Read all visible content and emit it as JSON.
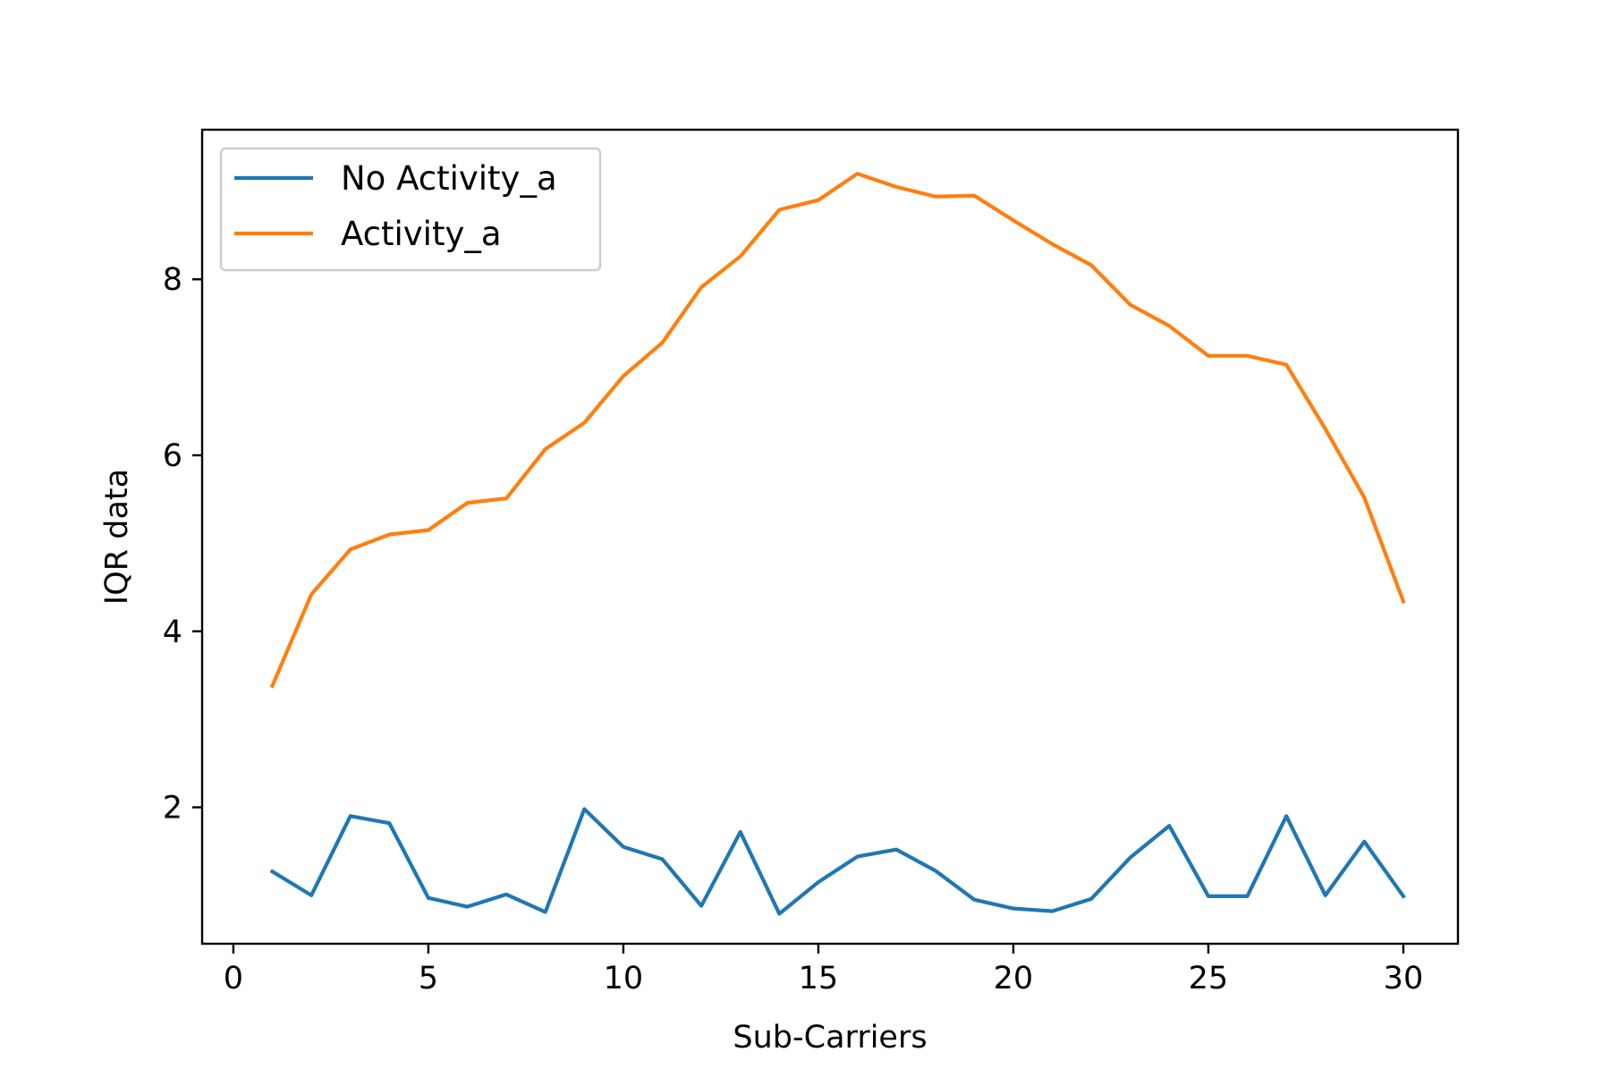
{
  "chart_data": {
    "type": "line",
    "title": "",
    "xlabel": "Sub-Carriers",
    "ylabel": "IQR data",
    "xlim": [
      -0.8,
      31.4
    ],
    "ylim": [
      0.45,
      9.7
    ],
    "xticks": [
      0,
      5,
      10,
      15,
      20,
      25,
      30
    ],
    "yticks": [
      2,
      4,
      6,
      8
    ],
    "grid": false,
    "legend_position": "top-left",
    "x": [
      1,
      2,
      3,
      4,
      5,
      6,
      7,
      8,
      9,
      10,
      11,
      12,
      13,
      14,
      15,
      16,
      17,
      18,
      19,
      20,
      21,
      22,
      23,
      24,
      25,
      26,
      27,
      28,
      29,
      30
    ],
    "series": [
      {
        "name": "No Activity_a",
        "color": "#1f77b4",
        "values": [
          1.27,
          1.0,
          1.9,
          1.82,
          0.97,
          0.87,
          1.01,
          0.81,
          1.98,
          1.55,
          1.41,
          0.88,
          1.72,
          0.79,
          1.15,
          1.44,
          1.52,
          1.28,
          0.95,
          0.85,
          0.82,
          0.96,
          1.43,
          1.79,
          0.99,
          0.99,
          1.9,
          1.0,
          1.61,
          0.99
        ]
      },
      {
        "name": "Activity_a",
        "color": "#ff7f0e",
        "values": [
          3.38,
          4.42,
          4.93,
          5.1,
          5.15,
          5.46,
          5.51,
          6.07,
          6.37,
          6.9,
          7.28,
          7.91,
          8.26,
          8.79,
          8.9,
          9.2,
          9.05,
          8.94,
          8.95,
          8.67,
          8.4,
          8.16,
          7.71,
          7.47,
          7.13,
          7.13,
          7.03,
          6.3,
          5.52,
          4.34
        ]
      }
    ]
  }
}
